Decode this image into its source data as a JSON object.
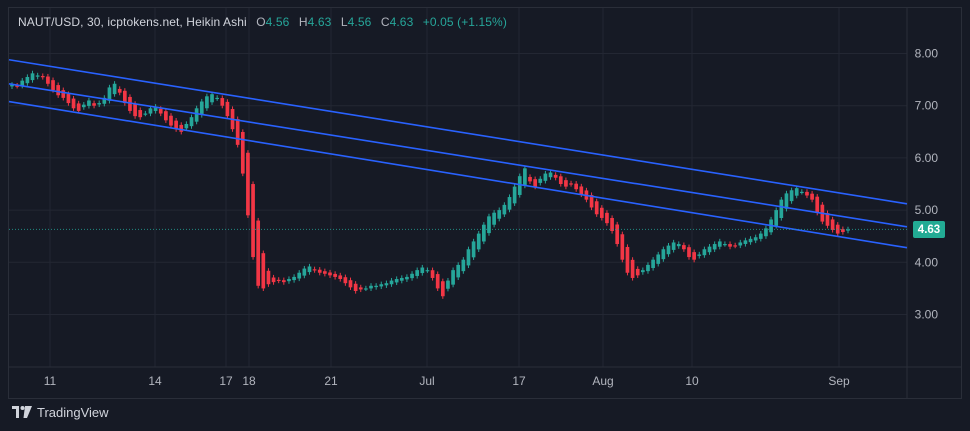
{
  "legend": {
    "symbol": "NAUT/USD, 30, icptokens.net, Heikin Ashi",
    "open_label": "O",
    "open": "4.56",
    "high_label": "H",
    "high": "4.63",
    "low_label": "L",
    "low": "4.56",
    "close_label": "C",
    "close": "4.63",
    "change": "+0.05 (+1.15%)"
  },
  "brand": {
    "name": "TradingView",
    "logo_icon": "tradingview-logo-icon"
  },
  "colors": {
    "background": "#161a25",
    "grid": "#232733",
    "up": "#26a69a",
    "down": "#f23645",
    "channel": "#2962ff",
    "price_tag": "#22ab94",
    "axis_text": "#b2b5be"
  },
  "chart_data": {
    "type": "candlestick",
    "style": "Heikin Ashi",
    "symbol": "NAUT/USD",
    "interval": "30",
    "x_ticks": [
      "11",
      "14",
      "17",
      "18",
      "21",
      "Jul",
      "17",
      "Aug",
      "10",
      "Sep"
    ],
    "y_ticks": [
      "8.00",
      "7.00",
      "6.00",
      "5.00",
      "4.00",
      "3.00"
    ],
    "ylim": [
      2.0,
      8.4
    ],
    "last_price": 4.63,
    "last_price_label": "4.63",
    "grid": true,
    "series": [
      {
        "close": [
          7.4,
          7.38,
          7.48,
          7.55,
          7.62,
          7.58,
          7.55,
          7.42,
          7.3,
          7.2,
          7.15,
          7.05,
          6.95,
          6.9,
          7.02,
          7.1,
          7.0,
          7.05,
          7.15,
          7.35,
          7.42,
          7.25,
          7.05,
          6.9,
          6.8,
          6.78,
          6.85,
          6.95,
          6.98,
          6.85,
          6.72,
          6.62,
          6.55,
          6.5,
          6.65,
          6.78,
          6.95,
          7.08,
          7.18,
          7.22,
          7.15,
          7.0,
          6.8,
          6.55,
          6.25,
          5.7,
          4.9,
          4.1,
          3.55,
          3.5,
          3.58,
          3.62,
          3.65,
          3.62,
          3.68,
          3.72,
          3.8,
          3.88,
          3.92,
          3.85,
          3.8,
          3.78,
          3.75,
          3.72,
          3.68,
          3.6,
          3.52,
          3.45,
          3.48,
          3.5,
          3.55,
          3.55,
          3.58,
          3.6,
          3.65,
          3.68,
          3.7,
          3.72,
          3.78,
          3.85,
          3.9,
          3.85,
          3.7,
          3.5,
          3.35,
          3.65,
          3.85,
          3.95,
          4.05,
          4.25,
          4.4,
          4.55,
          4.72,
          4.88,
          4.95,
          5.0,
          5.1,
          5.25,
          5.45,
          5.65,
          5.8,
          5.55,
          5.45,
          5.6,
          5.7,
          5.72,
          5.62,
          5.5,
          5.45,
          5.5,
          5.4,
          5.3,
          5.2,
          5.05,
          4.92,
          4.85,
          4.75,
          4.6,
          4.35,
          4.05,
          3.8,
          3.7,
          3.75,
          3.85,
          3.95,
          4.05,
          4.15,
          4.25,
          4.32,
          4.38,
          4.35,
          4.25,
          4.1,
          4.05,
          4.15,
          4.25,
          4.3,
          4.35,
          4.4,
          4.35,
          4.3,
          4.32,
          4.38,
          4.42,
          4.45,
          4.48,
          4.55,
          4.65,
          4.82,
          5.0,
          5.2,
          5.32,
          5.38,
          5.42,
          5.35,
          5.28,
          5.2,
          4.95,
          4.78,
          4.7,
          4.62,
          4.55,
          4.58,
          4.63
        ]
      },
      {
        "channel_upper": {
          "x1": "start",
          "y1": 7.88,
          "x2": "end",
          "y2": 5.12
        }
      },
      {
        "channel_middle": {
          "x1": "start",
          "y1": 7.42,
          "x2": "end",
          "y2": 4.68
        }
      },
      {
        "channel_lower": {
          "x1": "start",
          "y1": 7.08,
          "x2": "end",
          "y2": 4.28
        }
      }
    ]
  }
}
